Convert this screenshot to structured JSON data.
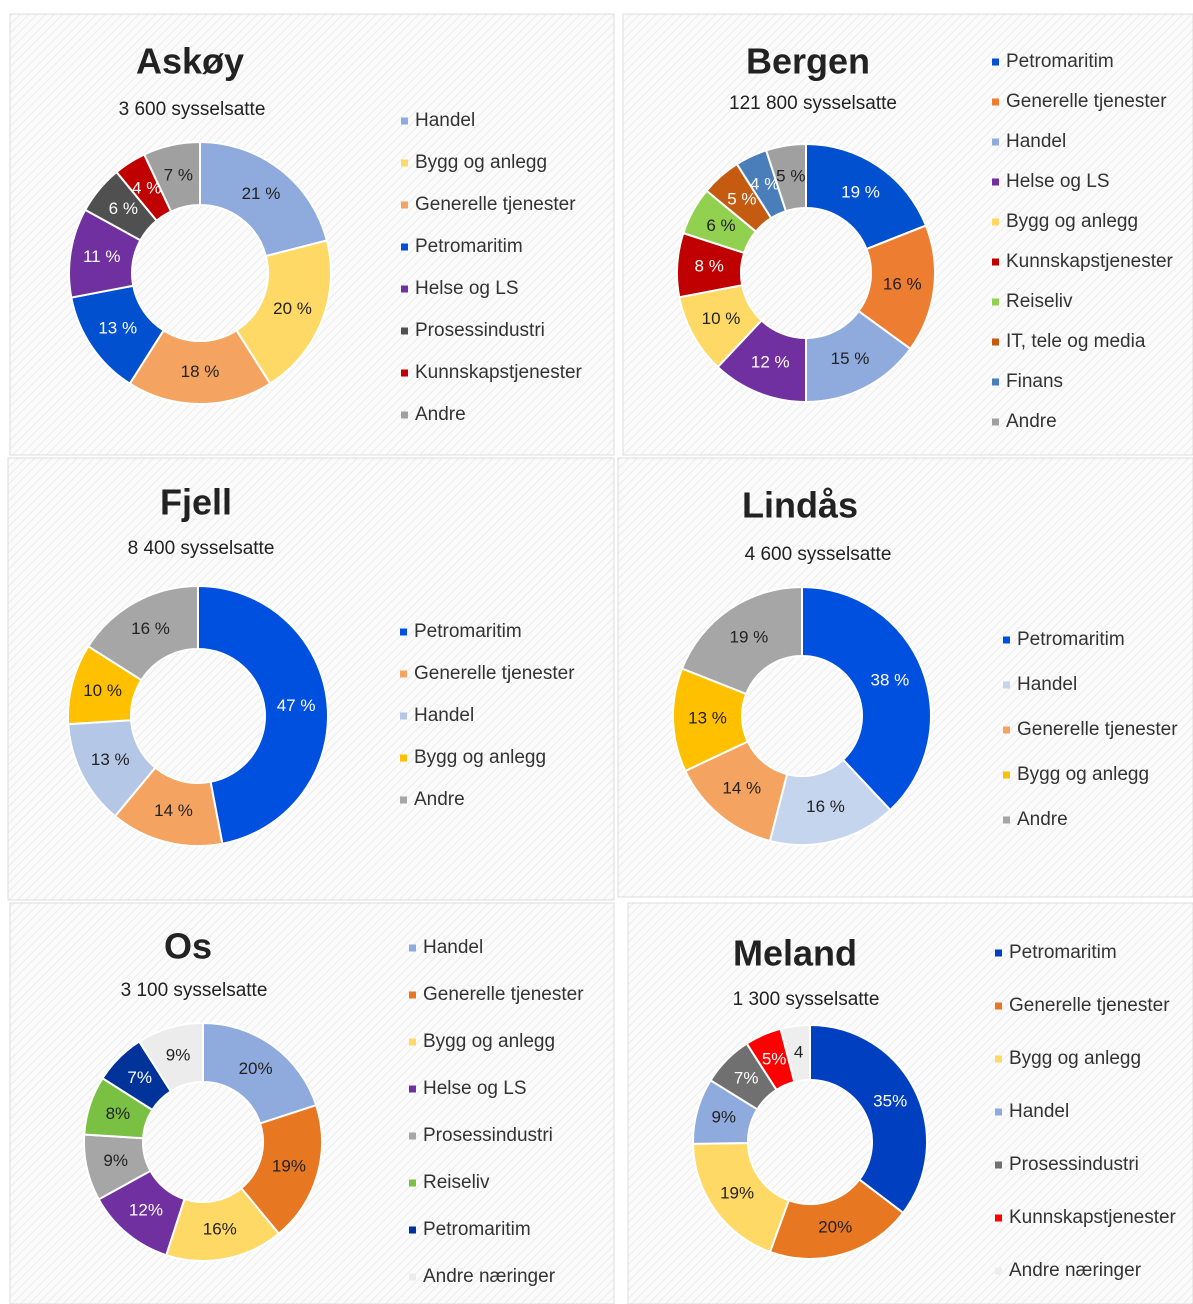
{
  "chart_data": [
    {
      "type": "donut",
      "title": "Askøy",
      "subtitle": "3 600 sysselsatte",
      "categories": [
        "Handel",
        "Bygg og anlegg",
        "Generelle tjenester",
        "Petromaritim",
        "Helse og LS",
        "Prosessindustri",
        "Kunnskapstjenester",
        "Andre"
      ],
      "values": [
        21,
        20,
        18,
        13,
        11,
        6,
        4,
        7
      ],
      "value_labels": [
        "21 %",
        "20 %",
        "18 %",
        "13 %",
        "11 %",
        "6 %",
        "4 %",
        "7 %"
      ],
      "colors": [
        "#8faadc",
        "#ffd966",
        "#f4a460",
        "#0050d0",
        "#7030a0",
        "#505050",
        "#c00000",
        "#a0a0a0"
      ]
    },
    {
      "type": "donut",
      "title": "Bergen",
      "subtitle": "121 800 sysselsatte",
      "categories": [
        "Petromaritim",
        "Generelle tjenester",
        "Handel",
        "Helse og LS",
        "Bygg og anlegg",
        "Kunnskapstjenester",
        "Reiseliv",
        "IT, tele og media",
        "Finans",
        "Andre"
      ],
      "values": [
        19,
        16,
        15,
        12,
        10,
        8,
        6,
        5,
        4,
        5
      ],
      "value_labels": [
        "19 %",
        "16 %",
        "15 %",
        "12 %",
        "10 %",
        "8 %",
        "6 %",
        "5 %",
        "4 %",
        "5 %"
      ],
      "colors": [
        "#0050d0",
        "#ed7d31",
        "#8faadc",
        "#7030a0",
        "#ffd966",
        "#c00000",
        "#92d050",
        "#c55a11",
        "#4a7ebb",
        "#a0a0a0"
      ]
    },
    {
      "type": "donut",
      "title": "Fjell",
      "subtitle": "8 400 sysselsatte",
      "categories": [
        "Petromaritim",
        "Generelle tjenester",
        "Handel",
        "Bygg og anlegg",
        "Andre"
      ],
      "values": [
        47,
        14,
        13,
        10,
        16
      ],
      "value_labels": [
        "47 %",
        "14 %",
        "13 %",
        "10 %",
        "16 %"
      ],
      "colors": [
        "#0050e0",
        "#f4a460",
        "#b4c7e7",
        "#ffc000",
        "#a6a6a6"
      ]
    },
    {
      "type": "donut",
      "title": "Lindås",
      "subtitle": "4 600 sysselsatte",
      "categories": [
        "Petromaritim",
        "Handel",
        "Generelle tjenester",
        "Bygg og anlegg",
        "Andre"
      ],
      "values": [
        38,
        16,
        14,
        13,
        19
      ],
      "value_labels": [
        "38 %",
        "16 %",
        "14 %",
        "13 %",
        "19 %"
      ],
      "colors": [
        "#0050e0",
        "#c5d5ee",
        "#f4a460",
        "#ffc000",
        "#a6a6a6"
      ]
    },
    {
      "type": "donut",
      "title": "Os",
      "subtitle": "3 100 sysselsatte",
      "categories": [
        "Handel",
        "Generelle tjenester",
        "Bygg og anlegg",
        "Helse og LS",
        "Prosessindustri",
        "Reiseliv",
        "Petromaritim",
        "Andre næringer"
      ],
      "values": [
        20,
        19,
        16,
        12,
        9,
        8,
        7,
        9
      ],
      "value_labels": [
        "20%",
        "19%",
        "16%",
        "12%",
        "9%",
        "8%",
        "7%",
        "9%"
      ],
      "colors": [
        "#8faadc",
        "#e87722",
        "#ffd966",
        "#7030a0",
        "#a6a6a6",
        "#7ac143",
        "#003399",
        "#ececec"
      ]
    },
    {
      "type": "donut",
      "title": "Meland",
      "subtitle": "1 300 sysselsatte",
      "categories": [
        "Petromaritim",
        "Generelle tjenester",
        "Bygg og anlegg",
        "Handel",
        "Prosessindustri",
        "Kunnskapstjenester",
        "Andre næringer"
      ],
      "values": [
        35,
        20,
        19,
        9,
        7,
        5,
        4
      ],
      "value_labels": [
        "35%",
        "20%",
        "19%",
        "9%",
        "7%",
        "5%",
        "4"
      ],
      "colors": [
        "#0040c0",
        "#e87722",
        "#ffd966",
        "#8faadc",
        "#707070",
        "#ff0000",
        "#eeeeee"
      ]
    }
  ]
}
